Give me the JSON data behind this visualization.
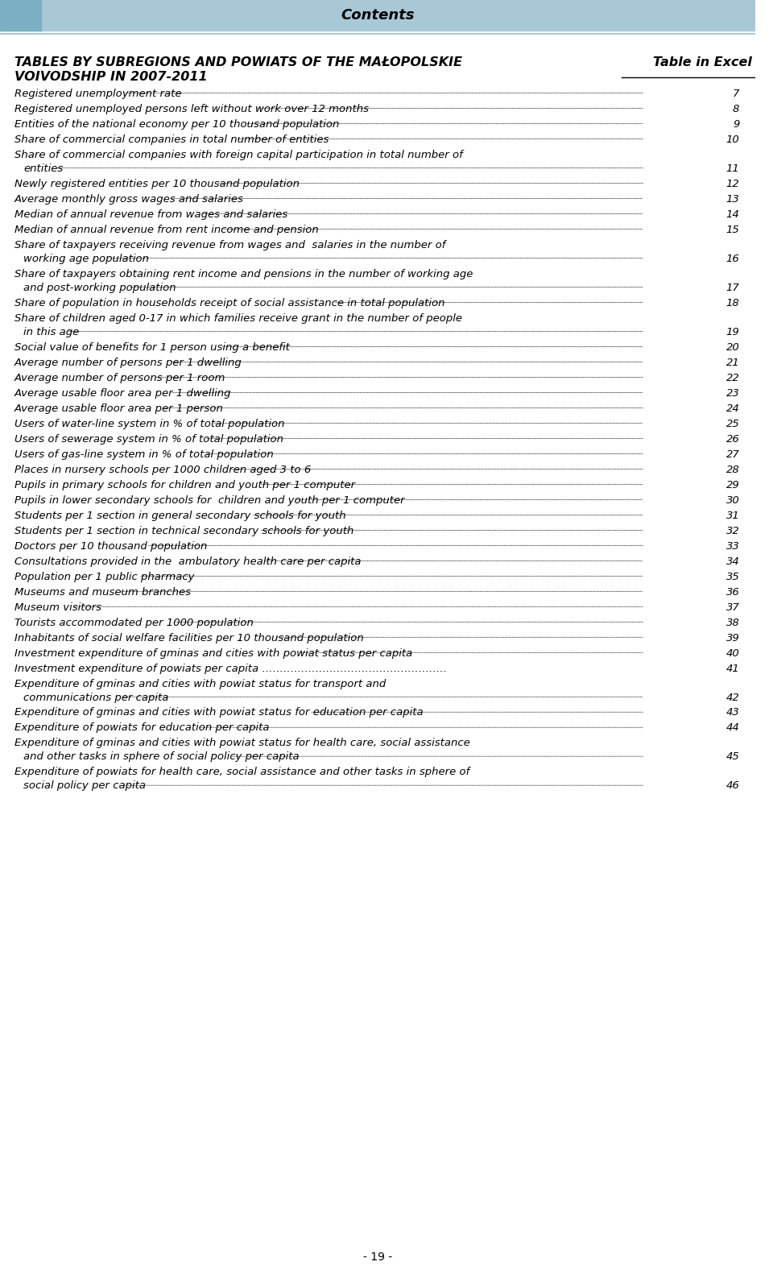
{
  "page_number": "- 19 -",
  "header_title": "Contents",
  "header_bg_color": "#a8c8d8",
  "header_square_color": "#7bafc4",
  "section_title_line1": "TABLES BY SUBREGIONS AND POWIATS OF THE MAŁOPOLSKIE",
  "section_title_line2": "VOIVODSHIP IN 2007-2011",
  "table_in_excel_label": "Table in Excel",
  "entries": [
    {
      "text": "Registered unemployment rate",
      "page": 7,
      "indent": false
    },
    {
      "text": "Registered unemployed persons left without work over 12 months",
      "page": 8,
      "indent": false
    },
    {
      "text": "Entities of the national economy per 10 thousand population",
      "page": 9,
      "indent": false
    },
    {
      "text": "Share of commercial companies in total number of entities",
      "page": 10,
      "indent": false
    },
    {
      "text": "Share of commercial companies with foreign capital participation in total number of\n    entities",
      "page": 11,
      "indent": false
    },
    {
      "text": "Newly registered entities per 10 thousand population",
      "page": 12,
      "indent": false
    },
    {
      "text": "Average monthly gross wages and salaries",
      "page": 13,
      "indent": false
    },
    {
      "text": "Median of annual revenue from wages and salaries",
      "page": 14,
      "indent": false
    },
    {
      "text": "Median of annual revenue from rent income and pension",
      "page": 15,
      "indent": false
    },
    {
      "text": "Share of taxpayers receiving revenue from wages and  salaries in the number of\n    working age population",
      "page": 16,
      "indent": false
    },
    {
      "text": "Share of taxpayers obtaining rent income and pensions in the number of working age\n    and post-working population",
      "page": 17,
      "indent": false
    },
    {
      "text": "Share of population in households receipt of social assistance in total population",
      "page": 18,
      "indent": false
    },
    {
      "text": "Share of children aged 0-17 in which families receive grant in the number of people\n    in this age",
      "page": 19,
      "indent": false
    },
    {
      "text": "Social value of benefits for 1 person using a benefit",
      "page": 20,
      "indent": false
    },
    {
      "text": "Average number of persons per 1 dwelling",
      "page": 21,
      "indent": false
    },
    {
      "text": "Average number of persons per 1 room",
      "page": 22,
      "indent": false
    },
    {
      "text": "Average usable floor area per 1 dwelling",
      "page": 23,
      "indent": false
    },
    {
      "text": "Average usable floor area per 1 person",
      "page": 24,
      "indent": false
    },
    {
      "text": "Users of water-line system in % of total population",
      "page": 25,
      "indent": false
    },
    {
      "text": "Users of sewerage system in % of total population",
      "page": 26,
      "indent": false
    },
    {
      "text": "Users of gas-line system in % of total population",
      "page": 27,
      "indent": false
    },
    {
      "text": "Places in nursery schools per 1000 children aged 3 to 6",
      "page": 28,
      "indent": false
    },
    {
      "text": "Pupils in primary schools for children and youth per 1 computer",
      "page": 29,
      "indent": false
    },
    {
      "text": "Pupils in lower secondary schools for  children and youth per 1 computer",
      "page": 30,
      "indent": false
    },
    {
      "text": "Students per 1 section in general secondary schools for youth",
      "page": 31,
      "indent": false
    },
    {
      "text": "Students per 1 section in technical secondary schools for youth",
      "page": 32,
      "indent": false
    },
    {
      "text": "Doctors per 10 thousand population",
      "page": 33,
      "indent": false
    },
    {
      "text": "Consultations provided in the  ambulatory health care per capita",
      "page": 34,
      "indent": false
    },
    {
      "text": "Population per 1 public pharmacy",
      "page": 35,
      "indent": false
    },
    {
      "text": "Museums and museum branches",
      "page": 36,
      "indent": false
    },
    {
      "text": "Museum visitors",
      "page": 37,
      "indent": false
    },
    {
      "text": "Tourists accommodated per 1000 population",
      "page": 38,
      "indent": false
    },
    {
      "text": "Inhabitants of social welfare facilities per 10 thousand population",
      "page": 39,
      "indent": false
    },
    {
      "text": "Investment expenditure of gminas and cities with powiat status per capita",
      "page": 40,
      "indent": false
    },
    {
      "text": "Investment expenditure of powiats per capita …………………………………………….",
      "page": 41,
      "indent": false,
      "nodots": true
    },
    {
      "text": "Expenditure of gminas and cities with powiat status for transport and\n    communications per capita",
      "page": 42,
      "indent": false
    },
    {
      "text": "Expenditure of gminas and cities with powiat status for education per capita",
      "page": 43,
      "indent": false
    },
    {
      "text": "Expenditure of powiats for education per capita",
      "page": 44,
      "indent": false
    },
    {
      "text": "Expenditure of gminas and cities with powiat status for health care, social assistance\n    and other tasks in sphere of social policy per capita",
      "page": 45,
      "indent": false
    },
    {
      "text": "Expenditure of powiats for health care, social assistance and other tasks in sphere of\n    social policy per capita",
      "page": 46,
      "indent": false
    }
  ],
  "bg_color": "#ffffff",
  "text_color": "#000000",
  "font_size": 9.5,
  "title_font_size": 11.5,
  "header_font_size": 13
}
